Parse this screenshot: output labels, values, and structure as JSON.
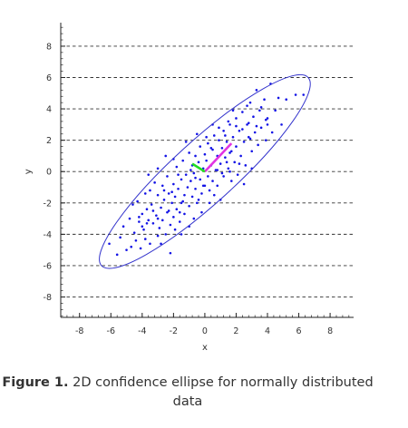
{
  "chart_data": {
    "type": "scatter",
    "title": "",
    "xlabel": "x",
    "ylabel": "y",
    "xlim": [
      -9.2,
      9.5
    ],
    "ylim": [
      -9.3,
      9.5
    ],
    "x_ticks": [
      -8,
      -6,
      -4,
      -2,
      0,
      2,
      4,
      6,
      8
    ],
    "y_ticks": [
      -8,
      -6,
      -4,
      -2,
      0,
      2,
      4,
      6,
      8
    ],
    "grid": "horizontal dashed at major y ticks",
    "point_color": "#1414e6",
    "ellipse": {
      "center": [
        0,
        0
      ],
      "major_end": [
        6.6,
        6.0
      ],
      "minor_end": [
        -1.3,
        1.5
      ],
      "color": "#3333cc"
    },
    "eigenvectors": [
      {
        "from": [
          0,
          0
        ],
        "to": [
          1.7,
          1.8
        ],
        "color": "#e233e2"
      },
      {
        "from": [
          0,
          0
        ],
        "to": [
          -0.8,
          0.5
        ],
        "color": "#22dd22"
      }
    ],
    "points": [
      [
        -6.1,
        -4.6
      ],
      [
        -5.6,
        -5.3
      ],
      [
        -5.4,
        -4.2
      ],
      [
        -5.2,
        -3.5
      ],
      [
        -5.0,
        -5.0
      ],
      [
        -4.8,
        -3.0
      ],
      [
        -4.7,
        -4.8
      ],
      [
        -4.6,
        -2.1
      ],
      [
        -4.5,
        -3.9
      ],
      [
        -4.4,
        -4.4
      ],
      [
        -4.3,
        -1.9
      ],
      [
        -4.2,
        -3.2
      ],
      [
        -4.1,
        -4.9
      ],
      [
        -4.0,
        -2.7
      ],
      [
        -3.9,
        -3.7
      ],
      [
        -3.8,
        -1.4
      ],
      [
        -3.8,
        -4.3
      ],
      [
        -3.7,
        -2.4
      ],
      [
        -3.6,
        -3.1
      ],
      [
        -3.5,
        -1.2
      ],
      [
        -3.5,
        -4.6
      ],
      [
        -3.4,
        -2.1
      ],
      [
        -3.3,
        -3.3
      ],
      [
        -3.2,
        -0.7
      ],
      [
        -3.1,
        -2.8
      ],
      [
        -3.0,
        -4.1
      ],
      [
        -3.0,
        -1.5
      ],
      [
        -2.9,
        -3.6
      ],
      [
        -2.8,
        -2.3
      ],
      [
        -2.7,
        -0.9
      ],
      [
        -2.7,
        -3.1
      ],
      [
        -2.6,
        -1.8
      ],
      [
        -2.5,
        -4.0
      ],
      [
        -2.4,
        -2.6
      ],
      [
        -2.4,
        -0.3
      ],
      [
        -2.3,
        -1.4
      ],
      [
        -2.2,
        -3.4
      ],
      [
        -2.1,
        -2.0
      ],
      [
        -2.0,
        -0.8
      ],
      [
        -2.0,
        -2.9
      ],
      [
        -1.9,
        -1.6
      ],
      [
        -1.8,
        0.3
      ],
      [
        -1.8,
        -2.4
      ],
      [
        -1.7,
        -1.1
      ],
      [
        -1.6,
        -3.2
      ],
      [
        -1.5,
        -0.5
      ],
      [
        -1.5,
        -2.0
      ],
      [
        -1.4,
        0.7
      ],
      [
        -1.3,
        -1.5
      ],
      [
        -1.3,
        -2.7
      ],
      [
        -1.2,
        -0.2
      ],
      [
        -1.1,
        -1.0
      ],
      [
        -1.0,
        1.2
      ],
      [
        -1.0,
        -2.2
      ],
      [
        -0.9,
        -0.6
      ],
      [
        -0.8,
        0.4
      ],
      [
        -0.8,
        -1.6
      ],
      [
        -0.7,
        -0.1
      ],
      [
        -0.6,
        1.0
      ],
      [
        -0.6,
        -1.1
      ],
      [
        -0.5,
        -2.0
      ],
      [
        -0.4,
        0.6
      ],
      [
        -0.3,
        -0.5
      ],
      [
        -0.3,
        1.6
      ],
      [
        -0.2,
        -1.4
      ],
      [
        -0.1,
        0.2
      ],
      [
        0.0,
        1.1
      ],
      [
        0.0,
        -0.9
      ],
      [
        0.1,
        0.7
      ],
      [
        0.2,
        -0.3
      ],
      [
        0.2,
        1.8
      ],
      [
        0.3,
        -1.2
      ],
      [
        0.4,
        0.4
      ],
      [
        0.5,
        1.4
      ],
      [
        0.5,
        -0.6
      ],
      [
        0.6,
        2.3
      ],
      [
        0.7,
        0.1
      ],
      [
        0.8,
        1.0
      ],
      [
        0.8,
        -0.9
      ],
      [
        0.9,
        2.0
      ],
      [
        1.0,
        0.5
      ],
      [
        1.1,
        1.5
      ],
      [
        1.2,
        -0.3
      ],
      [
        1.2,
        2.6
      ],
      [
        1.3,
        0.9
      ],
      [
        1.4,
        1.9
      ],
      [
        1.5,
        0.2
      ],
      [
        1.6,
        3.0
      ],
      [
        1.6,
        1.2
      ],
      [
        1.7,
        -0.6
      ],
      [
        1.8,
        2.2
      ],
      [
        1.9,
        0.6
      ],
      [
        2.0,
        3.4
      ],
      [
        2.0,
        1.6
      ],
      [
        2.1,
        -0.2
      ],
      [
        2.2,
        2.6
      ],
      [
        2.3,
        1.0
      ],
      [
        2.4,
        3.8
      ],
      [
        2.5,
        1.9
      ],
      [
        2.6,
        0.4
      ],
      [
        2.7,
        3.0
      ],
      [
        2.8,
        2.2
      ],
      [
        2.9,
        4.4
      ],
      [
        3.0,
        1.3
      ],
      [
        3.1,
        3.5
      ],
      [
        3.2,
        2.5
      ],
      [
        3.3,
        5.2
      ],
      [
        3.4,
        1.7
      ],
      [
        3.5,
        3.9
      ],
      [
        3.6,
        2.8
      ],
      [
        3.8,
        4.6
      ],
      [
        3.9,
        2.0
      ],
      [
        4.0,
        3.4
      ],
      [
        4.2,
        5.6
      ],
      [
        4.3,
        2.5
      ],
      [
        4.5,
        3.9
      ],
      [
        4.7,
        4.7
      ],
      [
        4.9,
        3.0
      ],
      [
        5.2,
        4.6
      ],
      [
        5.8,
        4.9
      ],
      [
        6.3,
        4.9
      ],
      [
        -2.5,
        1.0
      ],
      [
        -1.0,
        -3.5
      ],
      [
        1.0,
        -1.8
      ],
      [
        -3.0,
        0.2
      ],
      [
        0.5,
        3.0
      ],
      [
        -1.5,
        -4.0
      ],
      [
        2.5,
        -0.8
      ],
      [
        -0.5,
        2.4
      ],
      [
        -2.2,
        -5.2
      ],
      [
        3.0,
        0.2
      ],
      [
        1.8,
        3.9
      ],
      [
        -3.6,
        -0.2
      ],
      [
        -2.0,
        0.8
      ],
      [
        0.3,
        -2.0
      ],
      [
        1.5,
        3.2
      ],
      [
        4.0,
        3.0
      ],
      [
        -4.2,
        -2.9
      ],
      [
        -1.7,
        -0.2
      ],
      [
        0.9,
        2.8
      ],
      [
        -0.2,
        -2.6
      ],
      [
        2.7,
        4.2
      ],
      [
        -2.8,
        -4.6
      ],
      [
        3.6,
        4.1
      ],
      [
        -1.2,
        1.9
      ],
      [
        2.2,
        0.5
      ],
      [
        0.6,
        -1.5
      ],
      [
        -3.3,
        -2.5
      ],
      [
        1.3,
        2.3
      ],
      [
        -0.7,
        -3.0
      ],
      [
        3.3,
        2.9
      ],
      [
        -1.9,
        -3.7
      ],
      [
        2.0,
        2.9
      ],
      [
        -0.4,
        -1.8
      ],
      [
        -2.6,
        -1.2
      ],
      [
        1.1,
        -0.1
      ],
      [
        -4.0,
        -3.5
      ],
      [
        2.8,
        3.1
      ],
      [
        0.1,
        2.2
      ],
      [
        -1.6,
        -2.6
      ],
      [
        3.9,
        3.3
      ],
      [
        -3.0,
        -3.0
      ],
      [
        1.6,
        0.0
      ],
      [
        -0.9,
        0.1
      ],
      [
        2.4,
        2.7
      ],
      [
        -2.3,
        -2.5
      ],
      [
        0.4,
        1.5
      ],
      [
        -1.4,
        -1.9
      ],
      [
        1.7,
        1.3
      ],
      [
        -0.6,
        -0.4
      ],
      [
        2.9,
        2.1
      ],
      [
        -3.7,
        -3.3
      ],
      [
        0.8,
        0.1
      ],
      [
        -2.1,
        -1.3
      ],
      [
        1.4,
        0.6
      ],
      [
        -0.1,
        -0.9
      ]
    ]
  },
  "caption": {
    "label": "Figure 1.",
    "text": " 2D confidence ellipse for normally distributed data"
  }
}
